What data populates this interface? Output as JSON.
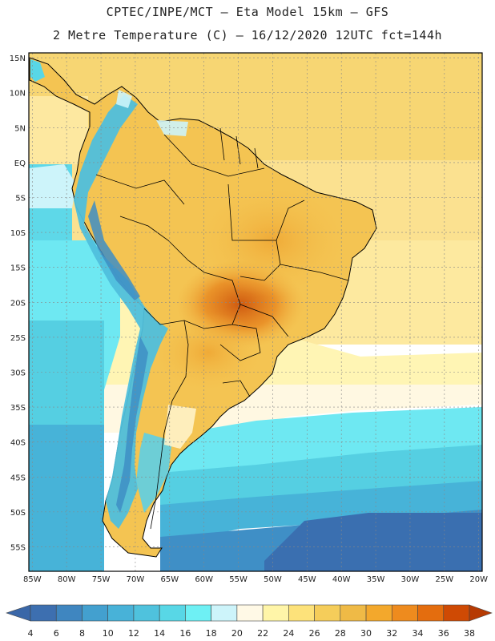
{
  "header": {
    "line1": "CPTEC/INPE/MCT –  Eta Model 15km – GFS",
    "line2": "2 Metre Temperature (C) – 16/12/2020 12UTC fct=144h"
  },
  "map": {
    "lat_labels": [
      "15N",
      "10N",
      "5N",
      "EQ",
      "5S",
      "10S",
      "15S",
      "20S",
      "25S",
      "30S",
      "35S",
      "40S",
      "45S",
      "50S",
      "55S"
    ],
    "lat_values": [
      15,
      10,
      5,
      0,
      -5,
      -10,
      -15,
      -20,
      -25,
      -30,
      -35,
      -40,
      -45,
      -50,
      -55
    ],
    "lon_labels": [
      "85W",
      "80W",
      "75W",
      "70W",
      "65W",
      "60W",
      "55W",
      "50W",
      "45W",
      "40W",
      "35W",
      "30W",
      "25W",
      "20W"
    ],
    "lon_values": [
      -85,
      -80,
      -75,
      -70,
      -65,
      -60,
      -55,
      -50,
      -45,
      -40,
      -35,
      -30,
      -25,
      -20
    ],
    "lon_range": [
      -85.5,
      -19.5
    ],
    "lat_range": [
      -58.5,
      15.7
    ]
  },
  "legend": {
    "ticks": [
      "4",
      "6",
      "8",
      "10",
      "12",
      "14",
      "16",
      "18",
      "20",
      "22",
      "24",
      "26",
      "28",
      "30",
      "32",
      "34",
      "36",
      "38"
    ],
    "colors": [
      "#3d6fb0",
      "#3f86c0",
      "#43a0cf",
      "#48b2d8",
      "#4fc2dd",
      "#58d7e6",
      "#6ef0f4",
      "#cdf4fa",
      "#fff9e6",
      "#fff5a8",
      "#fde27a",
      "#f5cd5a",
      "#efba46",
      "#f3a82c",
      "#ee8b1e",
      "#e46d0e",
      "#cf4a04"
    ],
    "under_color": "#3a67a8",
    "over_color": "#b63a02"
  }
}
